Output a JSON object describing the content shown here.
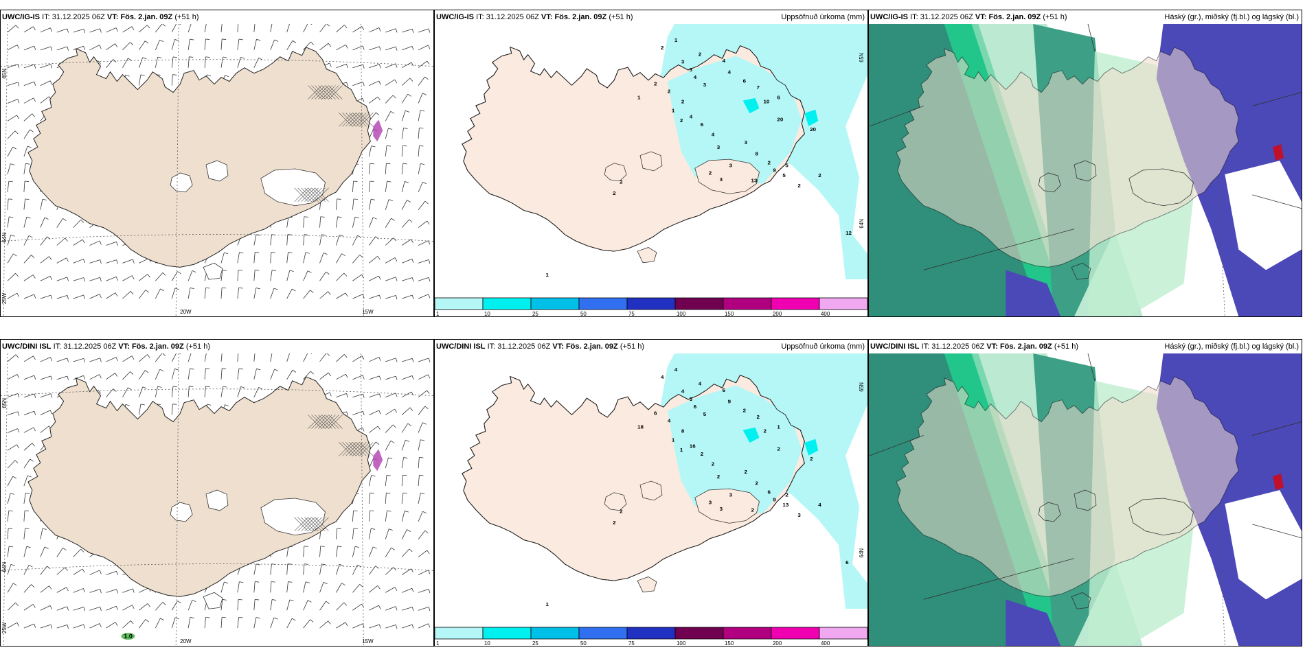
{
  "colors": {
    "land": "#f0e0d0",
    "land_light": "#fbeee2",
    "precip": [
      "#b5f7f7",
      "#00f0f0",
      "#00c0e8",
      "#3070f0",
      "#2030c0",
      "#700050",
      "#b00080",
      "#f000b0",
      "#f0a8f0"
    ],
    "cloud_high": "#2a9a7a",
    "cloud_mid": "#20c080",
    "cloud_low": "#4a4aba"
  },
  "panels": [
    {
      "id": "top-wind",
      "model": "UWC/IG-IS",
      "it_label": "IT:",
      "it": "31.12.2025 06Z",
      "vt_label": "VT:",
      "vt": "Fös. 2.jan. 09Z",
      "lead": "(+51 h)",
      "title": "",
      "type": "wind",
      "lat_labels": [
        "65N",
        "64N"
      ],
      "lon_labels": [
        "25W",
        "20W",
        "15W"
      ]
    },
    {
      "id": "top-precip",
      "model": "UWC/IG-IS",
      "it_label": "IT:",
      "it": "31.12.2025 06Z",
      "vt_label": "VT:",
      "vt": "Fös. 2.jan. 09Z",
      "lead": "(+51 h)",
      "title": "Uppsöfnuð úrkoma (mm)",
      "type": "precip",
      "lat_labels": [
        "65N",
        "64N"
      ],
      "values": [
        "1",
        "2",
        "2",
        "3",
        "3",
        "4",
        "3",
        "4",
        "4",
        "6",
        "7",
        "10",
        "6",
        "20",
        "20",
        "2",
        "2",
        "2",
        "1",
        "4",
        "6",
        "4",
        "3",
        "3",
        "8",
        "2",
        "3",
        "2",
        "3",
        "9",
        "5",
        "5",
        "13",
        "2",
        "2",
        "12",
        "1",
        "1",
        "2",
        "2",
        "2"
      ]
    },
    {
      "id": "top-cloud",
      "model": "UWC/IG-IS",
      "it_label": "IT:",
      "it": "31.12.2025 06Z",
      "vt_label": "VT:",
      "vt": "Fös. 2.jan. 09Z",
      "lead": "(+51 h)",
      "title": "Háský (gr.), miðský (fj.bl.) og lágský (bl.)",
      "type": "cloud"
    },
    {
      "id": "bottom-wind",
      "model": "UWC/DINI ISL",
      "it_label": "IT:",
      "it": "31.12.2025 06Z",
      "vt_label": "VT:",
      "vt": "Fös. 2.jan. 09Z",
      "lead": "(+51 h)",
      "title": "",
      "type": "wind",
      "lat_labels": [
        "65N",
        "64N"
      ],
      "lon_labels": [
        "25W",
        "20W",
        "15W"
      ],
      "annotation": "1.0"
    },
    {
      "id": "bottom-precip",
      "model": "UWC/DINI ISL",
      "it_label": "IT:",
      "it": "31.12.2025 06Z",
      "vt_label": "VT:",
      "vt": "Fös. 2.jan. 09Z",
      "lead": "(+51 h)",
      "title": "Uppsöfnuð úrkoma (mm)",
      "type": "precip",
      "lat_labels": [
        "65N",
        "64N"
      ],
      "values": [
        "4",
        "4",
        "4",
        "4",
        "3",
        "6",
        "5",
        "6",
        "9",
        "2",
        "2",
        "2",
        "1",
        "2",
        "2",
        "6",
        "4",
        "8",
        "18",
        "16",
        "2",
        "2",
        "2",
        "2",
        "2",
        "6",
        "3",
        "3",
        "3",
        "9",
        "13",
        "2",
        "2",
        "3",
        "4",
        "6",
        "1",
        "1",
        "1",
        "2",
        "2"
      ]
    },
    {
      "id": "bottom-cloud",
      "model": "UWC/DINI ISL",
      "it_label": "IT:",
      "it": "31.12.2025 06Z",
      "vt_label": "VT:",
      "vt": "Fös. 2.jan. 09Z",
      "lead": "(+51 h)",
      "title": "Háský (gr.), miðský (fj.bl.) og lágský (bl.)",
      "type": "cloud"
    }
  ],
  "colorbar": {
    "ticks": [
      "1",
      "10",
      "25",
      "50",
      "75",
      "100",
      "150",
      "200",
      "400"
    ]
  }
}
